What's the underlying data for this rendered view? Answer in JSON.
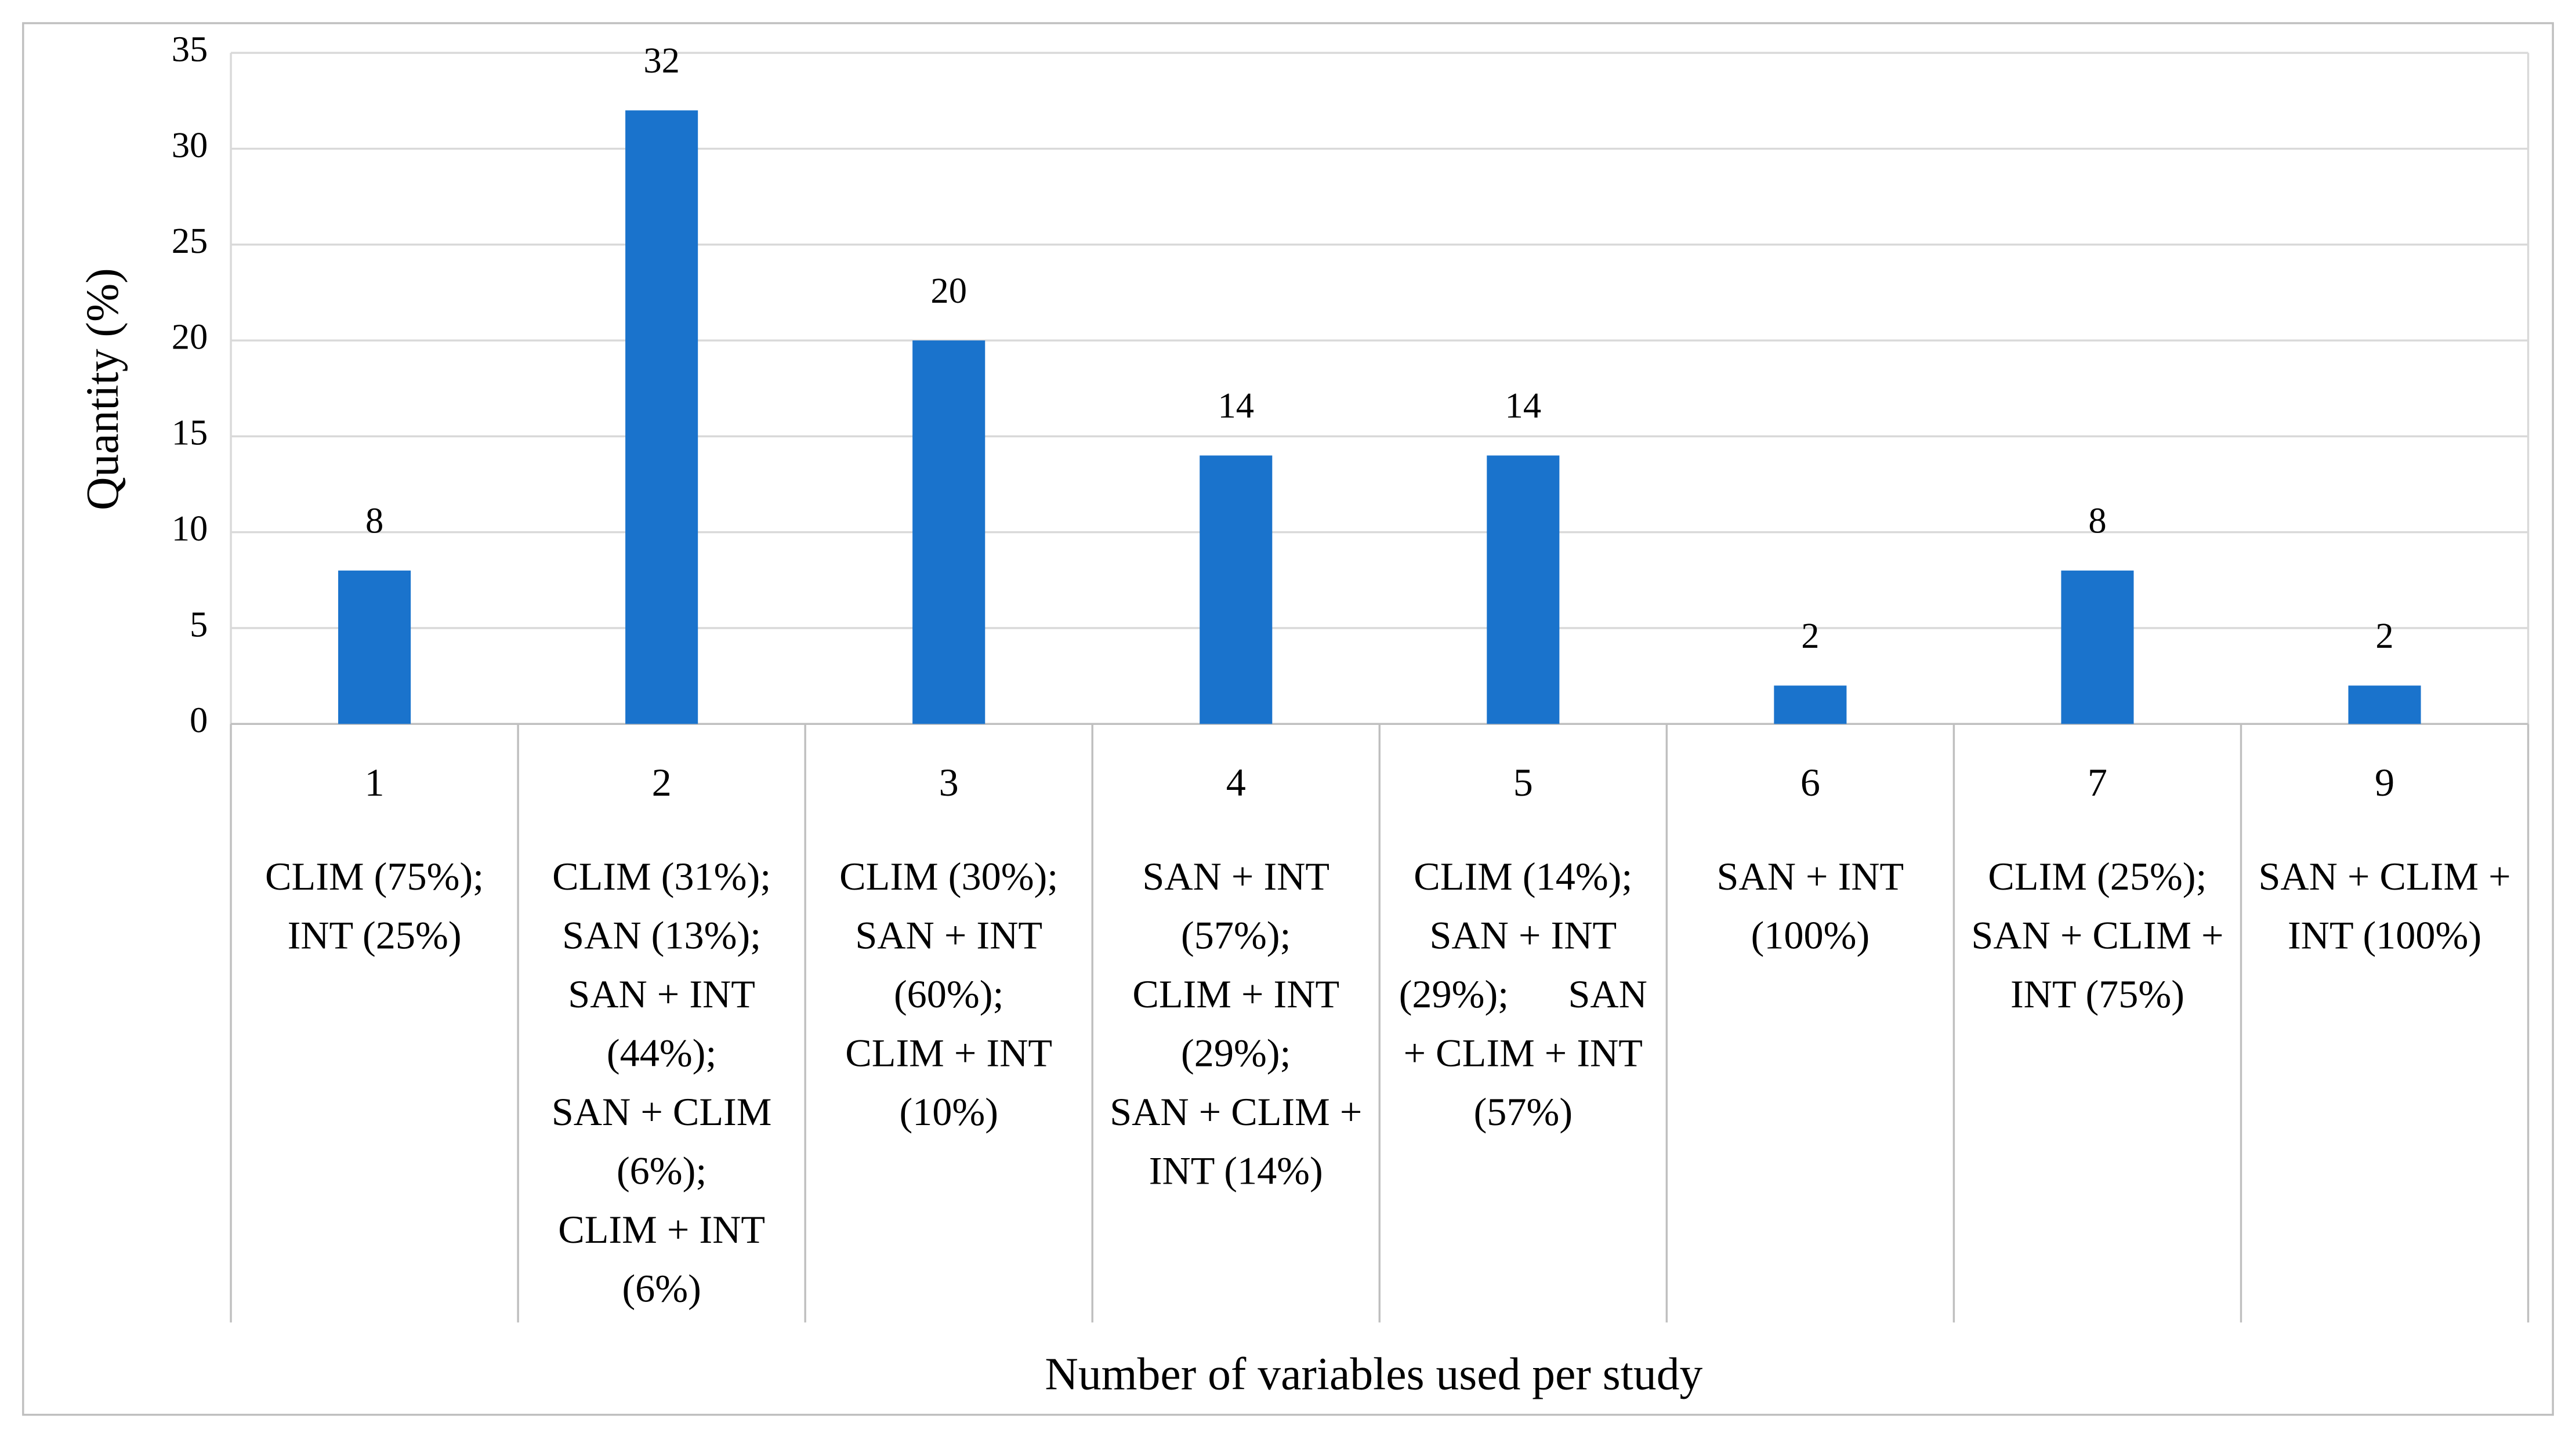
{
  "chart_data": {
    "type": "bar",
    "y_axis_label": "Quantity  (%)",
    "x_axis_label": "Number of variables used per study",
    "categories": [
      "1",
      "2",
      "3",
      "4",
      "5",
      "6",
      "7",
      "9"
    ],
    "category_details": [
      [
        "CLIM (75%);",
        "INT (25%)"
      ],
      [
        "CLIM (31%);",
        "SAN (13%);",
        "SAN + INT",
        "(44%);",
        "SAN + CLIM",
        "(6%);",
        "CLIM + INT",
        "(6%)"
      ],
      [
        "CLIM (30%);",
        "SAN + INT",
        "(60%);",
        "CLIM + INT",
        "(10%)"
      ],
      [
        "SAN + INT",
        "(57%);",
        "CLIM + INT",
        "(29%);",
        "SAN + CLIM +",
        "INT (14%)"
      ],
      [
        "CLIM (14%);",
        "SAN + INT",
        "(29%);      SAN",
        "+ CLIM + INT",
        "(57%)"
      ],
      [
        "SAN + INT",
        "(100%)"
      ],
      [
        "CLIM (25%);",
        "SAN + CLIM +",
        "INT (75%)"
      ],
      [
        "SAN + CLIM +",
        "INT (100%)"
      ]
    ],
    "values": [
      8,
      32,
      20,
      14,
      14,
      2,
      8,
      2
    ],
    "color": "#1a73cc",
    "ylim": [
      0,
      35
    ],
    "yticks": [
      0,
      5,
      10,
      15,
      20,
      25,
      30,
      35
    ],
    "grid": true
  }
}
